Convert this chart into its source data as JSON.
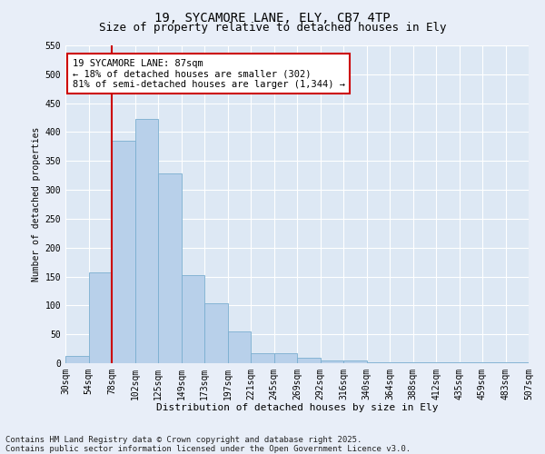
{
  "title1": "19, SYCAMORE LANE, ELY, CB7 4TP",
  "title2": "Size of property relative to detached houses in Ely",
  "xlabel": "Distribution of detached houses by size in Ely",
  "ylabel": "Number of detached properties",
  "bar_values": [
    12,
    157,
    385,
    422,
    328,
    153,
    103,
    55,
    18,
    18,
    10,
    5,
    5,
    1,
    1,
    1,
    1,
    1,
    1,
    1
  ],
  "xtick_labels": [
    "30sqm",
    "54sqm",
    "78sqm",
    "102sqm",
    "125sqm",
    "149sqm",
    "173sqm",
    "197sqm",
    "221sqm",
    "245sqm",
    "269sqm",
    "292sqm",
    "316sqm",
    "340sqm",
    "364sqm",
    "388sqm",
    "412sqm",
    "435sqm",
    "459sqm",
    "483sqm",
    "507sqm"
  ],
  "bar_color": "#b8d0ea",
  "bar_edge_color": "#7aaed0",
  "red_line_color": "#cc0000",
  "red_line_x": 2,
  "annotation_text": "19 SYCAMORE LANE: 87sqm\n← 18% of detached houses are smaller (302)\n81% of semi-detached houses are larger (1,344) →",
  "annotation_box_facecolor": "#ffffff",
  "annotation_box_edgecolor": "#cc0000",
  "ylim": [
    0,
    550
  ],
  "yticks": [
    0,
    50,
    100,
    150,
    200,
    250,
    300,
    350,
    400,
    450,
    500,
    550
  ],
  "footer_text": "Contains HM Land Registry data © Crown copyright and database right 2025.\nContains public sector information licensed under the Open Government Licence v3.0.",
  "fig_bg_color": "#e8eef8",
  "plot_bg_color": "#dde8f4",
  "title_fontsize": 10,
  "subtitle_fontsize": 9,
  "tick_fontsize": 7,
  "label_fontsize": 8,
  "footer_fontsize": 6.5,
  "ann_fontsize": 7.5
}
